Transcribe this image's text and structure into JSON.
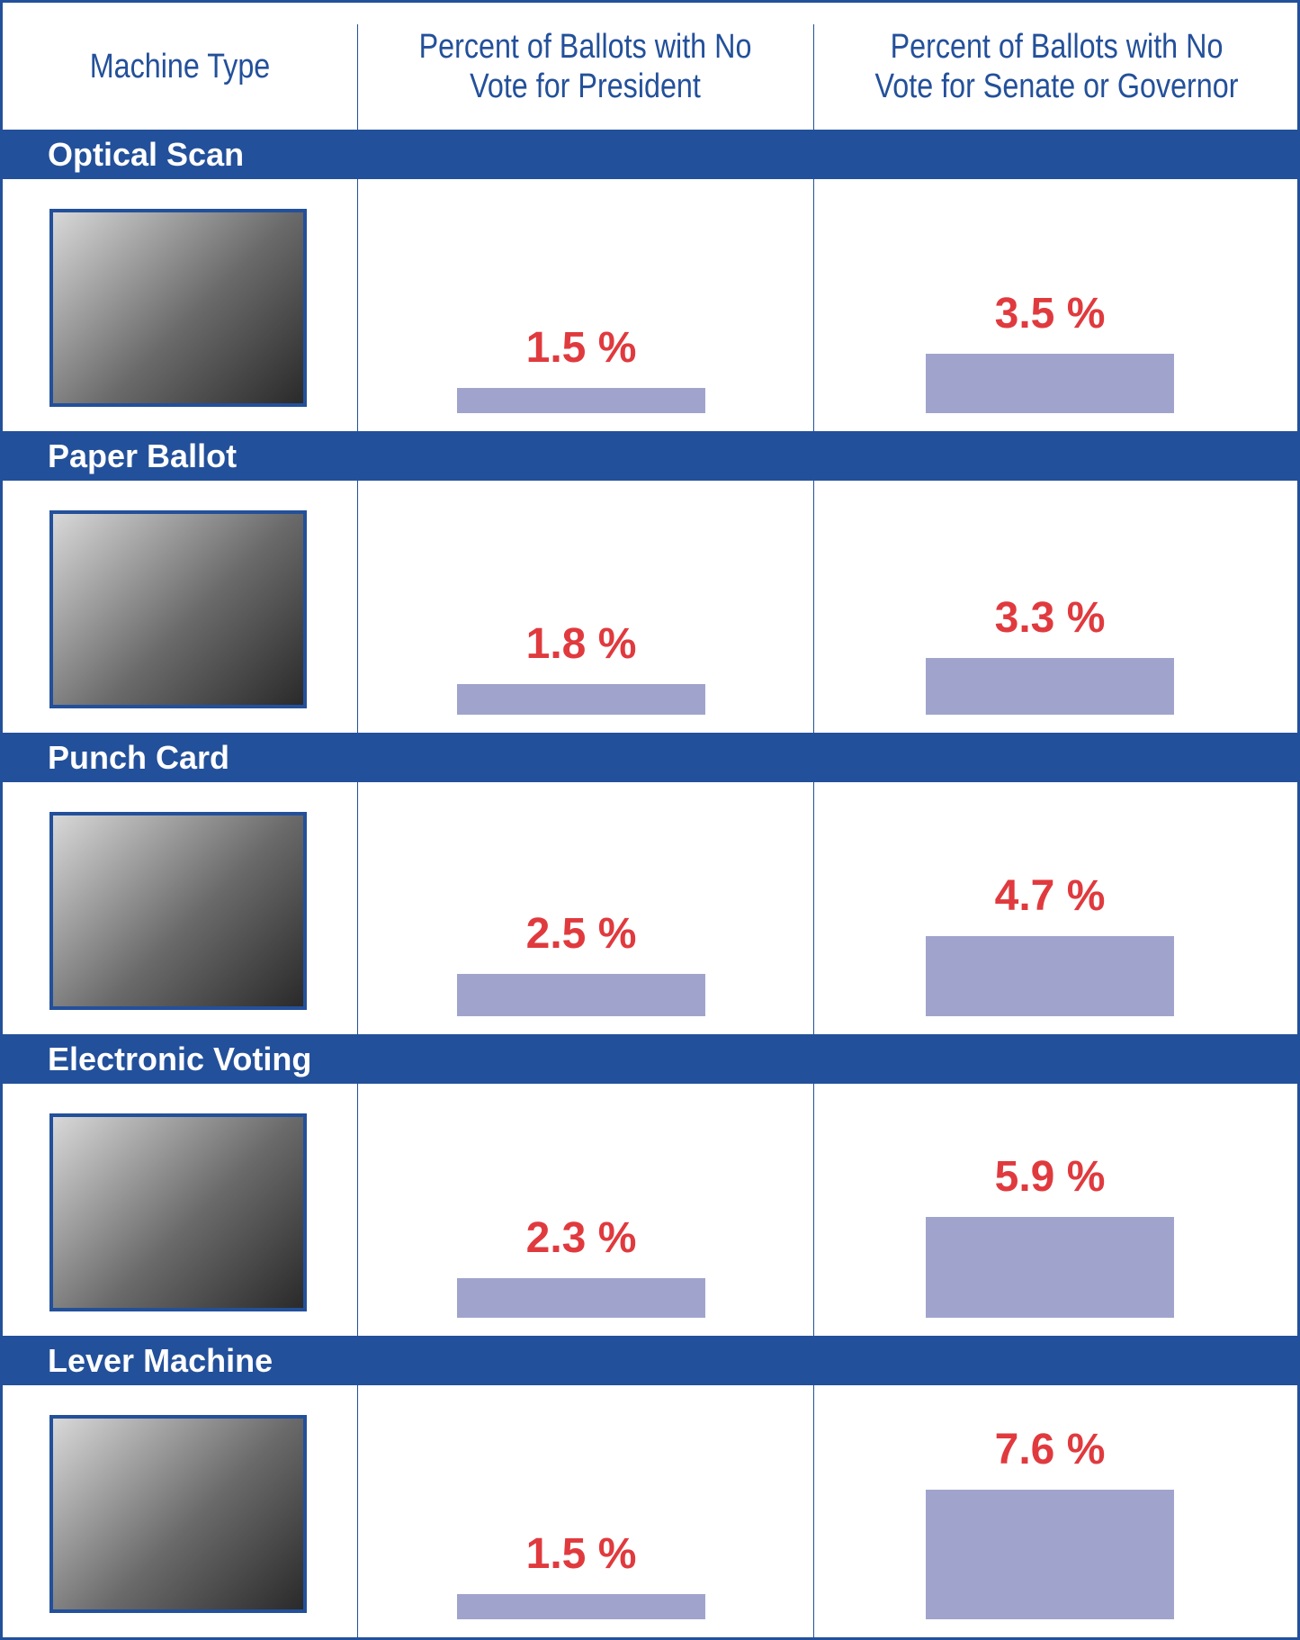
{
  "chart_data": {
    "type": "bar",
    "category_header": "Machine Type",
    "categories": [
      "Optical Scan",
      "Paper Ballot",
      "Punch Card",
      "Electronic Voting",
      "Lever Machine"
    ],
    "series": [
      {
        "name": "Percent of Ballots with No Vote for President",
        "color": "#a0a4cc",
        "values": [
          1.5,
          1.8,
          2.5,
          2.3,
          1.5
        ],
        "value_labels": [
          "1.5 %",
          "1.8 %",
          "2.5 %",
          "2.3 %",
          "1.5 %"
        ]
      },
      {
        "name": "Percent of Ballots with No Vote for Senate or Governor",
        "color": "#a0a4cc",
        "values": [
          3.5,
          3.3,
          4.7,
          5.9,
          7.6
        ],
        "value_labels": [
          "3.5 %",
          "3.3 %",
          "4.7 %",
          "5.9 %",
          "7.6 %"
        ]
      }
    ],
    "header_color": "#23509a",
    "label_color": "#e03a3e"
  }
}
